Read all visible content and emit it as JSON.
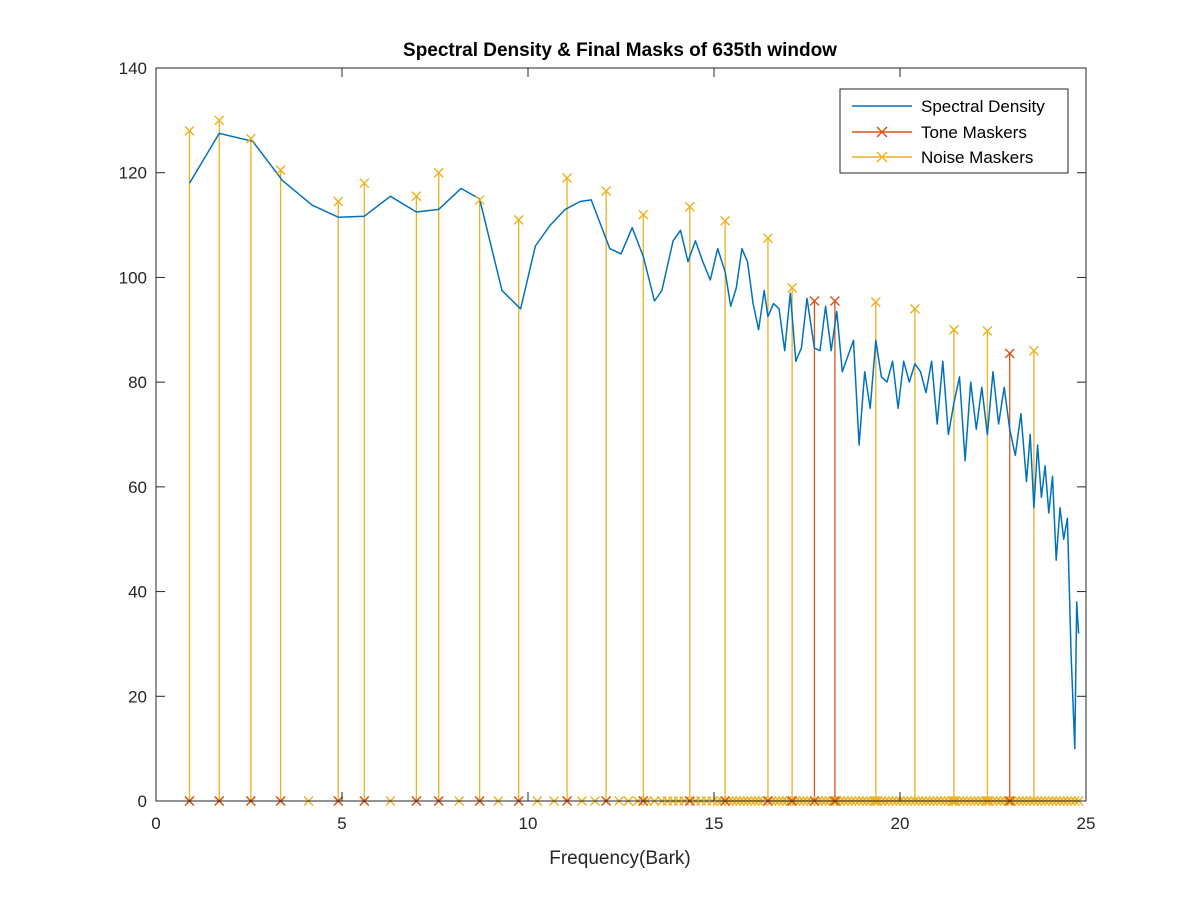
{
  "chart_data": {
    "type": "line",
    "title": "Spectral Density & Final Masks of 635th window",
    "xlabel": "Frequency(Bark)",
    "ylabel": "",
    "xlim": [
      0,
      25
    ],
    "ylim": [
      0,
      140
    ],
    "xticks": [
      "0",
      "5",
      "10",
      "15",
      "20",
      "25"
    ],
    "yticks": [
      "0",
      "20",
      "40",
      "60",
      "80",
      "100",
      "120",
      "140"
    ],
    "grid": false,
    "legend_position": "top-right",
    "colors": {
      "spectral": "#0072BD",
      "tone": "#D95319",
      "noise": "#EDB120",
      "axis": "#262626"
    },
    "series": [
      {
        "name": "Spectral Density",
        "kind": "line",
        "x": [
          0.9,
          1.7,
          2.6,
          3.4,
          4.2,
          4.9,
          5.6,
          6.3,
          7.0,
          7.6,
          8.2,
          8.7,
          9.3,
          9.8,
          10.2,
          10.6,
          11.0,
          11.4,
          11.7,
          12.2,
          12.5,
          12.8,
          13.1,
          13.4,
          13.6,
          13.9,
          14.1,
          14.3,
          14.5,
          14.7,
          14.9,
          15.1,
          15.3,
          15.45,
          15.6,
          15.75,
          15.9,
          16.05,
          16.2,
          16.35,
          16.45,
          16.6,
          16.75,
          16.9,
          17.05,
          17.2,
          17.35,
          17.5,
          17.7,
          17.85,
          18.0,
          18.15,
          18.3,
          18.45,
          18.6,
          18.75,
          18.9,
          19.05,
          19.2,
          19.35,
          19.5,
          19.65,
          19.8,
          19.95,
          20.1,
          20.25,
          20.4,
          20.55,
          20.7,
          20.85,
          21.0,
          21.15,
          21.3,
          21.45,
          21.6,
          21.75,
          21.9,
          22.05,
          22.2,
          22.35,
          22.5,
          22.65,
          22.8,
          22.95,
          23.1,
          23.25,
          23.4,
          23.5,
          23.6,
          23.7,
          23.8,
          23.9,
          24.0,
          24.1,
          24.2,
          24.3,
          24.4,
          24.5,
          24.6,
          24.7,
          24.75,
          24.8
        ],
        "values": [
          118,
          127.5,
          126,
          118.5,
          113.8,
          111.5,
          111.7,
          115.5,
          112.5,
          113.0,
          117.0,
          115.0,
          97.5,
          94.0,
          106.0,
          110.0,
          113.0,
          114.5,
          114.8,
          105.5,
          104.5,
          109.5,
          104.0,
          95.5,
          97.5,
          107.0,
          109.0,
          103.0,
          107.0,
          103.0,
          99.5,
          105.5,
          101.0,
          94.5,
          98.0,
          105.5,
          103.0,
          95.0,
          90.0,
          97.5,
          92.5,
          95.0,
          94.0,
          86.0,
          97.0,
          84.0,
          86.5,
          96.0,
          86.5,
          86.0,
          94.5,
          86.0,
          93.5,
          82.0,
          85.0,
          88.0,
          68.0,
          82.0,
          75.0,
          88.0,
          81.0,
          80.0,
          84.0,
          75.0,
          84.0,
          80.0,
          83.5,
          82.0,
          78.0,
          84.0,
          72.0,
          84.0,
          70.0,
          76.0,
          81.0,
          65.0,
          80.0,
          71.0,
          79.0,
          70.0,
          82.0,
          72.0,
          79.0,
          71.0,
          66.0,
          74.0,
          61.0,
          70.0,
          56.0,
          68.0,
          58.0,
          64.0,
          55.0,
          62.0,
          46.0,
          56.0,
          50.0,
          54.0,
          28.0,
          10.0,
          38.0,
          32.0
        ]
      },
      {
        "name": "Tone Maskers",
        "kind": "stem",
        "x": [
          17.7,
          18.25,
          22.95
        ],
        "values": [
          95.5,
          95.5,
          85.5
        ],
        "zero_x": [
          0.9,
          1.7,
          2.55,
          3.35,
          4.9,
          5.6,
          7.0,
          7.6,
          8.7,
          9.75,
          11.05,
          12.1,
          13.1,
          14.35,
          15.3,
          16.45,
          17.1
        ]
      },
      {
        "name": "Noise Maskers",
        "kind": "stem",
        "x": [
          0.9,
          1.7,
          2.55,
          3.35,
          4.9,
          5.6,
          7.0,
          7.6,
          8.7,
          9.75,
          11.05,
          12.1,
          13.1,
          14.35,
          15.3,
          16.45,
          17.1,
          19.35,
          20.4,
          21.45,
          22.35,
          23.6
        ],
        "values": [
          128.0,
          130.0,
          126.5,
          120.5,
          114.5,
          118.0,
          115.5,
          120.0,
          114.8,
          111.0,
          119.0,
          116.5,
          112.0,
          113.5,
          110.8,
          107.5,
          98.0,
          95.3,
          94.0,
          90.0,
          89.8,
          86.0
        ],
        "zero_x": [
          4.1,
          6.3,
          8.15,
          9.2,
          10.25,
          10.7,
          11.45,
          11.8,
          12.45,
          12.7,
          12.95,
          13.2,
          13.4,
          13.6,
          13.75,
          13.9,
          14.05,
          14.2,
          14.5,
          14.65,
          14.8,
          14.95,
          15.1,
          15.2,
          15.4,
          15.5,
          15.6,
          15.7,
          15.8,
          15.9,
          16.0,
          16.1,
          16.2,
          16.3,
          16.55,
          16.65,
          16.75,
          16.85,
          16.95,
          17.05,
          17.2,
          17.3,
          17.4,
          17.5,
          17.6,
          17.8,
          17.9,
          18.0,
          18.1,
          18.2,
          18.3,
          18.4,
          18.5,
          18.6,
          18.7,
          18.8,
          18.9,
          19.0,
          19.1,
          19.2,
          19.3,
          19.4,
          19.5,
          19.6,
          19.7,
          19.8,
          19.9,
          20.0,
          20.1,
          20.2,
          20.3,
          20.5,
          20.6,
          20.7,
          20.8,
          20.9,
          21.0,
          21.1,
          21.2,
          21.3,
          21.4,
          21.5,
          21.6,
          21.7,
          21.8,
          21.9,
          22.0,
          22.1,
          22.2,
          22.3,
          22.4,
          22.5,
          22.6,
          22.7,
          22.8,
          22.9,
          23.0,
          23.1,
          23.2,
          23.3,
          23.4,
          23.5,
          23.6,
          23.7,
          23.8,
          23.9,
          24.0,
          24.1,
          24.2,
          24.3,
          24.4,
          24.5,
          24.6,
          24.7,
          24.8
        ]
      }
    ]
  }
}
